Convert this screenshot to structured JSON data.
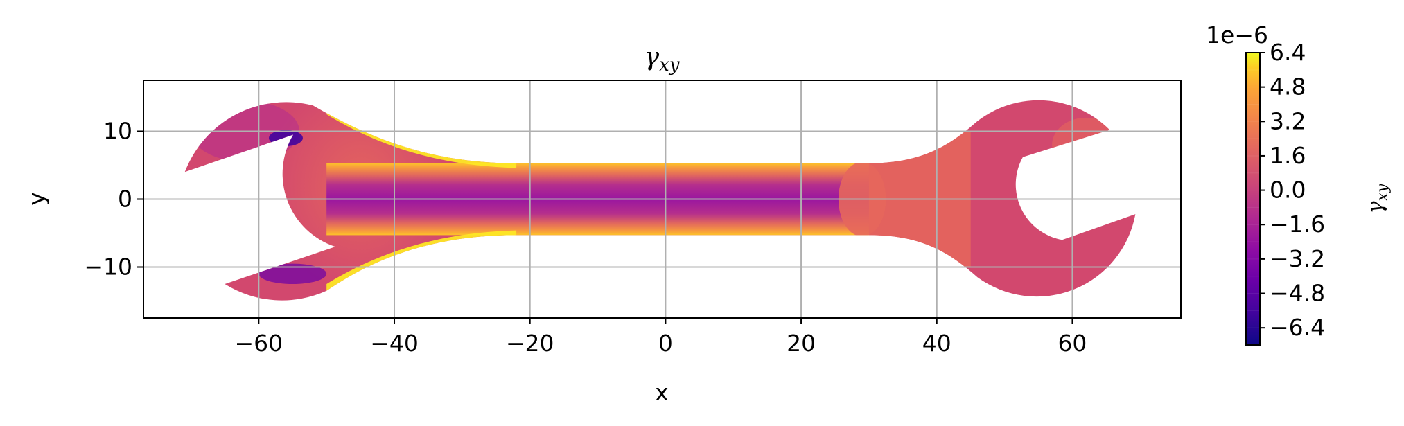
{
  "chart_data": {
    "type": "heatmap",
    "subtype": "filled-contour",
    "title": "γ",
    "title_subscript": "xy",
    "xlabel": "x",
    "ylabel": "y",
    "xlim": [
      -77,
      76
    ],
    "ylim": [
      -17.5,
      17.5
    ],
    "xticks": [
      -60,
      -40,
      -20,
      0,
      20,
      40,
      60
    ],
    "xtick_labels": [
      "−60",
      "−40",
      "−20",
      "0",
      "20",
      "40",
      "60"
    ],
    "yticks": [
      -10,
      0,
      10
    ],
    "ytick_labels": [
      "−10",
      "0",
      "10"
    ],
    "grid": true,
    "colormap": "plasma",
    "colorbar": {
      "label": "γ",
      "label_subscript": "xy",
      "offset_text": "1e−6",
      "range": [
        -7.2,
        6.4
      ],
      "ticks": [
        6.4,
        4.8,
        3.2,
        1.6,
        0.0,
        -1.6,
        -3.2,
        -4.8,
        -6.4
      ],
      "tick_labels": [
        "6.4",
        "4.8",
        "3.2",
        "1.6",
        "0.0",
        "−1.6",
        "−3.2",
        "−4.8",
        "−6.4"
      ],
      "scale": 1e-06
    },
    "colors": {
      "body_base": "#d2486e",
      "positive_zone": "#e6675c",
      "handle_core": "#9a16a0",
      "handle_mid": "#b52f8c",
      "handle_edge": "#f79a3e",
      "hot_spot": "#fde725"
    }
  }
}
